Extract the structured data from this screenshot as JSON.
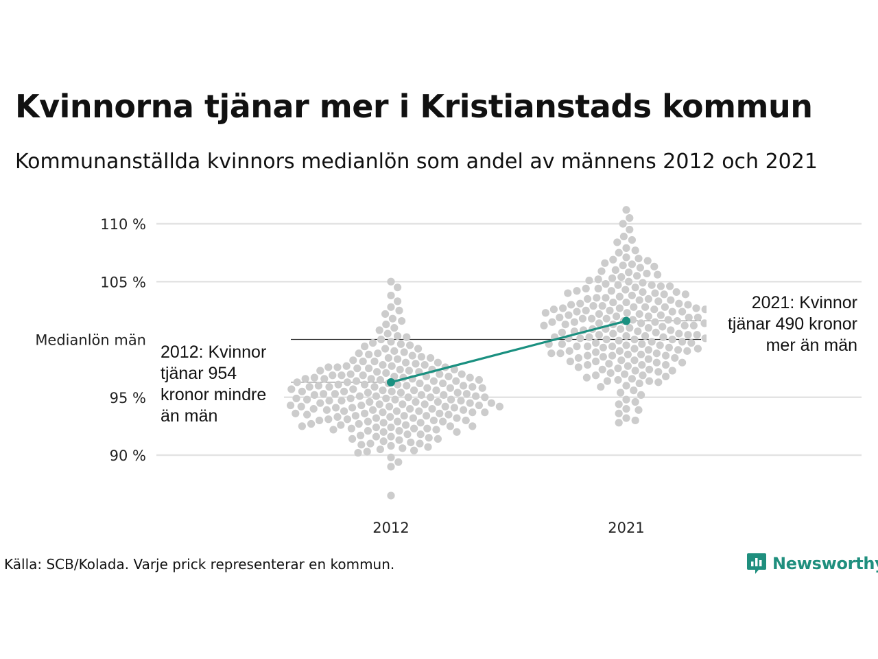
{
  "header": {
    "title": "Kvinnorna tjänar mer i Kristianstads kommun",
    "subtitle": "Kommunanställda kvinnors medianlön som andel av männens 2012 och 2021"
  },
  "footer": {
    "source": "Källa: SCB/Kolada. Varje prick representerar en kommun.",
    "brand": "Newsworthy"
  },
  "colors": {
    "highlight": "#1a9080",
    "dots": "#cccccc",
    "grid": "#e3e3e3",
    "reference": "#333333"
  },
  "icons": {
    "brand_logo": "newsworthy-logo-icon"
  },
  "chart_data": {
    "type": "scatter",
    "subtype": "beeswarm",
    "categories": [
      "2012",
      "2021"
    ],
    "ylim": [
      86.5,
      111.5
    ],
    "yticks": [
      {
        "value": 90,
        "label": "90 %"
      },
      {
        "value": 95,
        "label": "95 %"
      },
      {
        "value": 105,
        "label": "105 %"
      },
      {
        "value": 110,
        "label": "110 %"
      }
    ],
    "reference_line": {
      "value": 100,
      "label": "Medianlön män"
    },
    "grid": true,
    "highlight": {
      "name": "Kristianstad",
      "values": [
        96.3,
        101.6
      ]
    },
    "annotations": [
      {
        "category": "2012",
        "lines": [
          "2012: Kvinnor",
          "tjänar 954",
          "kronor mindre",
          "än män"
        ]
      },
      {
        "category": "2021",
        "lines": [
          "2021: Kvinnor",
          "tjänar 490 kronor",
          "mer än män"
        ]
      }
    ],
    "series": [
      {
        "name": "2012",
        "values": [
          105.0,
          104.5,
          103.8,
          103.3,
          102.8,
          102.5,
          102.2,
          101.8,
          101.6,
          101.3,
          101.0,
          100.8,
          100.5,
          100.3,
          100.0,
          99.8,
          99.6,
          99.4,
          99.2,
          99.0,
          98.8,
          98.6,
          98.4,
          98.2,
          98.0,
          97.8,
          97.6,
          97.5,
          97.4,
          97.2,
          97.0,
          96.9,
          96.8,
          96.7,
          96.6,
          96.5,
          96.4,
          96.3,
          96.2,
          96.1,
          96.0,
          95.9,
          95.8,
          95.7,
          95.6,
          95.5,
          95.4,
          95.3,
          95.2,
          95.1,
          95.0,
          94.9,
          94.8,
          94.7,
          94.6,
          94.5,
          94.4,
          94.3,
          94.2,
          94.1,
          94.0,
          93.9,
          93.8,
          93.7,
          93.6,
          93.5,
          93.4,
          93.3,
          93.2,
          93.1,
          93.0,
          92.9,
          92.8,
          92.7,
          92.6,
          92.5,
          92.4,
          92.3,
          92.2,
          92.1,
          92.0,
          91.8,
          91.6,
          91.4,
          91.2,
          91.0,
          90.8,
          90.6,
          90.4,
          90.2,
          89.8,
          89.4,
          89.0,
          86.5,
          97.9,
          97.3,
          96.9,
          96.4,
          95.9,
          95.6,
          95.3,
          94.7,
          94.4,
          94.1,
          93.9,
          93.4,
          92.9,
          92.5,
          98.5,
          97.7,
          97.1,
          96.6,
          96.2,
          95.4,
          95.0,
          94.6,
          94.2,
          93.6,
          93.0,
          92.3,
          91.7,
          91.1,
          96.8,
          96.1,
          95.5,
          94.9,
          94.3,
          93.8,
          99.2,
          98.1,
          97.6,
          97.0,
          96.5,
          95.8,
          95.2,
          94.8,
          94.0,
          93.3,
          92.7,
          92.1,
          91.5,
          90.9,
          97.4,
          96.7,
          96.0,
          95.1,
          94.5,
          93.7,
          98.9,
          98.3,
          97.8,
          97.2,
          96.3,
          95.7,
          95.3,
          94.5,
          93.9,
          93.5,
          92.6,
          92.2,
          91.3,
          90.5,
          100.2,
          99.5,
          98.7,
          98.0,
          97.3,
          96.6,
          95.9,
          95.0,
          94.2,
          93.2,
          92.4,
          91.6,
          90.7,
          96.9,
          96.2,
          95.6,
          94.8,
          94.1,
          93.4,
          92.8,
          97.5,
          96.8,
          96.0,
          95.2,
          94.4,
          93.6,
          92.9,
          92.0,
          98.4,
          97.7,
          97.0,
          96.4,
          95.8,
          95.1,
          94.6,
          94.0,
          93.1,
          92.5,
          91.8,
          91.0,
          99.7,
          98.8,
          98.1,
          97.4,
          96.6,
          95.9,
          95.4,
          94.7,
          94.2,
          93.7,
          93.0,
          92.3,
          91.4,
          90.3,
          97.6,
          96.7,
          96.1,
          95.5,
          94.9,
          94.3,
          93.8,
          93.2
        ],
        "color": "#cccccc"
      },
      {
        "name": "2021",
        "values": [
          111.2,
          110.5,
          110.0,
          109.5,
          108.9,
          108.4,
          107.9,
          107.5,
          107.1,
          106.8,
          106.5,
          106.2,
          105.9,
          105.6,
          105.3,
          105.0,
          104.8,
          104.6,
          104.4,
          104.2,
          104.0,
          103.8,
          103.6,
          103.4,
          103.2,
          103.0,
          102.8,
          102.6,
          102.4,
          102.2,
          102.0,
          101.8,
          101.6,
          101.4,
          101.2,
          101.0,
          100.8,
          100.6,
          100.4,
          100.2,
          100.0,
          99.8,
          99.6,
          99.4,
          99.2,
          99.0,
          98.8,
          98.6,
          98.4,
          98.2,
          98.0,
          97.8,
          97.6,
          97.4,
          97.2,
          97.0,
          96.8,
          96.6,
          96.4,
          96.2,
          96.0,
          95.6,
          95.2,
          94.8,
          94.4,
          94.0,
          93.6,
          93.2,
          92.8,
          108.6,
          107.7,
          107.0,
          106.4,
          105.8,
          105.2,
          104.7,
          104.3,
          103.9,
          103.5,
          103.1,
          102.7,
          102.3,
          101.9,
          101.5,
          101.1,
          100.7,
          100.3,
          99.9,
          99.5,
          99.1,
          98.7,
          98.3,
          97.9,
          97.5,
          97.1,
          96.7,
          96.3,
          95.9,
          95.4,
          94.6,
          93.9,
          93.0,
          106.9,
          106.3,
          105.7,
          105.1,
          104.6,
          104.1,
          103.7,
          103.3,
          102.9,
          102.5,
          102.1,
          101.7,
          101.3,
          100.9,
          100.5,
          100.1,
          99.7,
          99.3,
          98.9,
          98.5,
          98.1,
          97.7,
          97.3,
          96.9,
          96.5,
          106.6,
          106.0,
          105.4,
          104.9,
          104.5,
          104.0,
          103.6,
          103.1,
          102.7,
          102.2,
          101.8,
          101.3,
          100.9,
          100.4,
          100.0,
          99.6,
          99.1,
          98.7,
          98.2,
          97.8,
          97.3,
          96.9,
          96.4,
          105.5,
          104.7,
          104.1,
          103.5,
          103.0,
          102.4,
          101.9,
          101.4,
          100.8,
          100.2,
          99.7,
          99.2,
          98.6,
          98.0,
          97.4,
          104.4,
          103.9,
          103.4,
          102.9,
          102.3,
          101.7,
          101.2,
          100.6,
          100.1,
          99.5,
          99.0,
          98.4,
          97.8,
          104.2,
          103.2,
          102.6,
          102.0,
          101.5,
          100.7,
          100.0,
          99.3,
          98.8,
          98.1,
          102.8,
          102.2,
          101.6,
          100.9,
          100.3,
          99.4,
          98.6,
          102.7,
          102.1,
          101.4,
          100.4,
          99.8,
          99.0,
          102.5,
          101.9,
          101.2,
          100.2,
          99.6,
          102.8,
          102.4,
          101.8,
          101.0,
          100.1,
          99.4,
          98.8,
          102.6,
          101.5,
          100.5
        ],
        "color": "#cccccc"
      }
    ]
  }
}
